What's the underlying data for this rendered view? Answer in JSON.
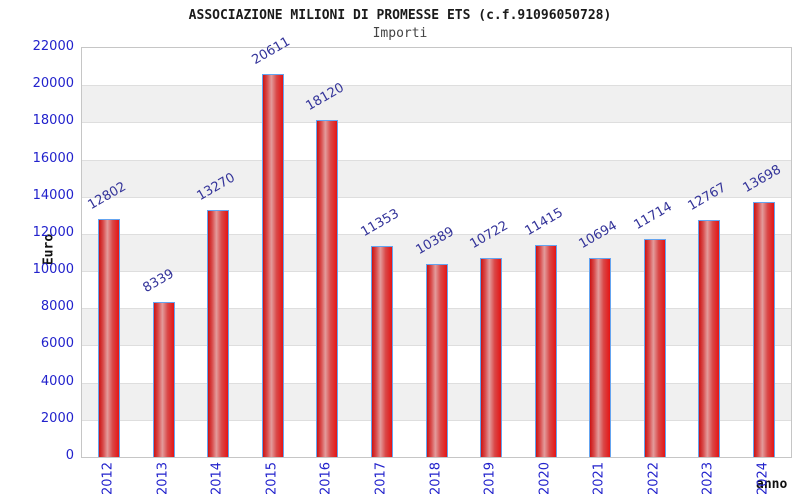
{
  "header": {
    "title": "ASSOCIAZIONE MILIONI DI PROMESSE ETS (c.f.91096050728)",
    "subtitle": "Importi"
  },
  "chart_data": {
    "type": "bar",
    "title": "ASSOCIAZIONE MILIONI DI PROMESSE ETS (c.f.91096050728)",
    "subtitle": "Importi",
    "xlabel": "anno",
    "ylabel": "Euro",
    "categories": [
      "2012",
      "2013",
      "2014",
      "2015",
      "2016",
      "2017",
      "2018",
      "2019",
      "2020",
      "2021",
      "2022",
      "2023",
      "2024"
    ],
    "values": [
      12802,
      8339,
      13270,
      20611,
      18120,
      11353,
      10389,
      10722,
      11415,
      10694,
      11714,
      12767,
      13698
    ],
    "ylim": [
      0,
      22000
    ],
    "ytick_step": 2000,
    "yticks": [
      0,
      2000,
      4000,
      6000,
      8000,
      10000,
      12000,
      14000,
      16000,
      18000,
      20000,
      22000
    ],
    "grid": "horizontal",
    "legend": "none",
    "colors": {
      "bar_fill": "#e01616",
      "bar_highlight": "#e39c9c",
      "bar_border": "#64a4f0",
      "tick_label": "#2222cc",
      "value_label": "#333399",
      "band_gray": "#f0f0f0",
      "title_text": "#1a1a1a",
      "subtitle_text": "#444444"
    }
  }
}
